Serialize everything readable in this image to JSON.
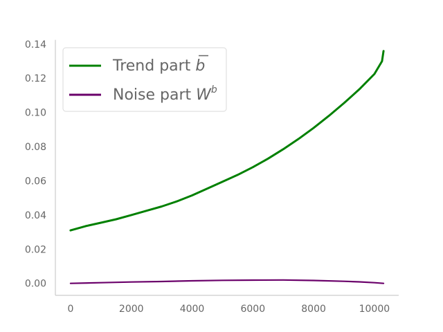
{
  "chart_data": {
    "type": "line",
    "title": "",
    "xlabel": "",
    "ylabel": "",
    "xlim": [
      -500,
      10800
    ],
    "ylim": [
      -0.007,
      0.1425
    ],
    "x_ticks": [
      0,
      2000,
      4000,
      6000,
      8000,
      10000
    ],
    "x_tick_labels": [
      "0",
      "2000",
      "4000",
      "6000",
      "8000",
      "10000"
    ],
    "y_ticks": [
      0.0,
      0.02,
      0.04,
      0.06,
      0.08,
      0.1,
      0.12,
      0.14
    ],
    "y_tick_labels": [
      "0.00",
      "0.02",
      "0.04",
      "0.06",
      "0.08",
      "0.10",
      "0.12",
      "0.14"
    ],
    "grid": false,
    "legend_position": "top-left",
    "series": [
      {
        "name": "Trend part ",
        "name_symbol": "b",
        "color": "#008000",
        "x": [
          0,
          500,
          1000,
          1500,
          2000,
          2500,
          3000,
          3500,
          4000,
          4500,
          5000,
          5500,
          6000,
          6500,
          7000,
          7500,
          8000,
          8500,
          9000,
          9500,
          10000,
          10250,
          10300
        ],
        "y": [
          0.031,
          0.0335,
          0.0355,
          0.0375,
          0.04,
          0.0425,
          0.045,
          0.048,
          0.0515,
          0.0555,
          0.0595,
          0.0635,
          0.068,
          0.073,
          0.0785,
          0.0845,
          0.091,
          0.098,
          0.1055,
          0.1135,
          0.1225,
          0.13,
          0.136
        ]
      },
      {
        "name": "Noise part ",
        "name_symbol": "W",
        "name_superscript": "b",
        "color": "#6a006a",
        "x": [
          0,
          1000,
          2000,
          3000,
          4000,
          5000,
          6000,
          7000,
          8000,
          9000,
          9500,
          10000,
          10300
        ],
        "y": [
          0.0,
          0.0004,
          0.0008,
          0.0011,
          0.0015,
          0.0018,
          0.0019,
          0.002,
          0.0017,
          0.0012,
          0.0009,
          0.0004,
          0.0
        ]
      }
    ]
  }
}
